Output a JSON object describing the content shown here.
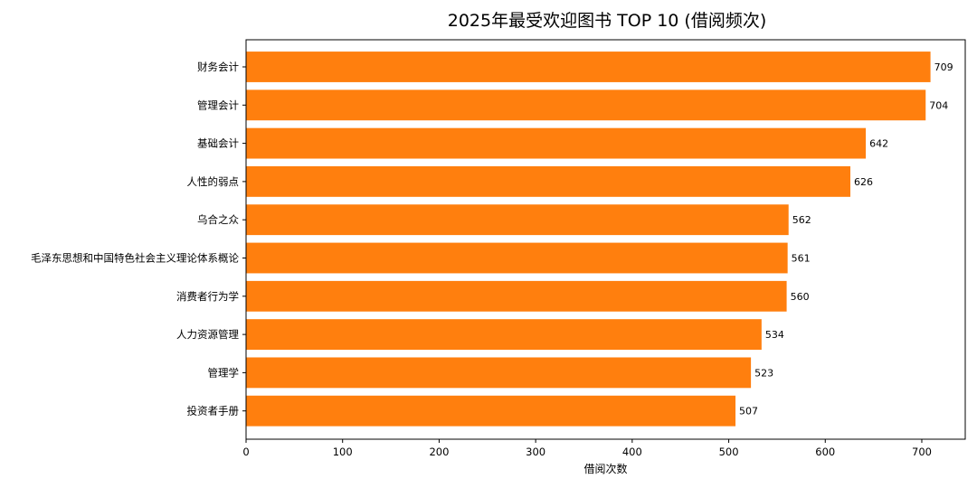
{
  "chart_data": {
    "type": "bar",
    "orientation": "horizontal",
    "title": "2025年最受欢迎图书 TOP 10 (借阅频次)",
    "xlabel": "借阅次数",
    "ylabel": "",
    "categories": [
      "财务会计",
      "管理会计",
      "基础会计",
      "人性的弱点",
      "乌合之众",
      "毛泽东思想和中国特色社会主义理论体系概论",
      "消费者行为学",
      "人力资源管理",
      "管理学",
      "投资者手册"
    ],
    "values": [
      709,
      704,
      642,
      626,
      562,
      561,
      560,
      534,
      523,
      507
    ],
    "xlim": [
      0,
      745
    ],
    "xticks": [
      0,
      100,
      200,
      300,
      400,
      500,
      600,
      700
    ],
    "grid": false,
    "legend": "none",
    "bar_color": "#ff7f0e",
    "data_labels": true
  }
}
